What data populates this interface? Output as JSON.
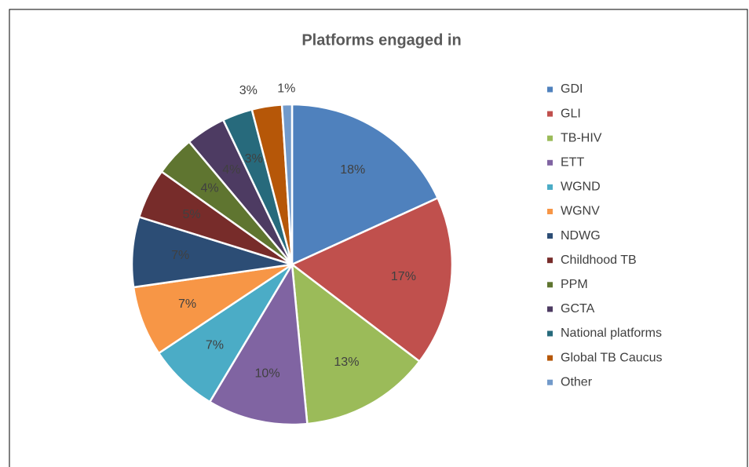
{
  "chart_data": {
    "type": "pie",
    "title": "Platforms engaged in",
    "categories": [
      "GDI",
      "GLI",
      "TB-HIV",
      "ETT",
      "WGND",
      "WGNV",
      "NDWG",
      "Childhood TB",
      "PPM",
      "GCTA",
      "National platforms",
      "Global TB Caucus",
      "Other"
    ],
    "values": [
      18,
      17,
      13,
      10,
      7,
      7,
      7,
      5,
      4,
      4,
      3,
      3,
      1
    ],
    "value_labels": [
      "18%",
      "17%",
      "13%",
      "10%",
      "7%",
      "7%",
      "7%",
      "5%",
      "4%",
      "4%",
      "3%",
      "3%",
      "1%"
    ],
    "colors": [
      "#4f81bd",
      "#c0504d",
      "#9bbb59",
      "#8064a2",
      "#4bacc6",
      "#f79646",
      "#2c4d75",
      "#772c2a",
      "#5f7530",
      "#4d3b62",
      "#276a7c",
      "#b65708",
      "#729aca"
    ],
    "legend": "right"
  }
}
